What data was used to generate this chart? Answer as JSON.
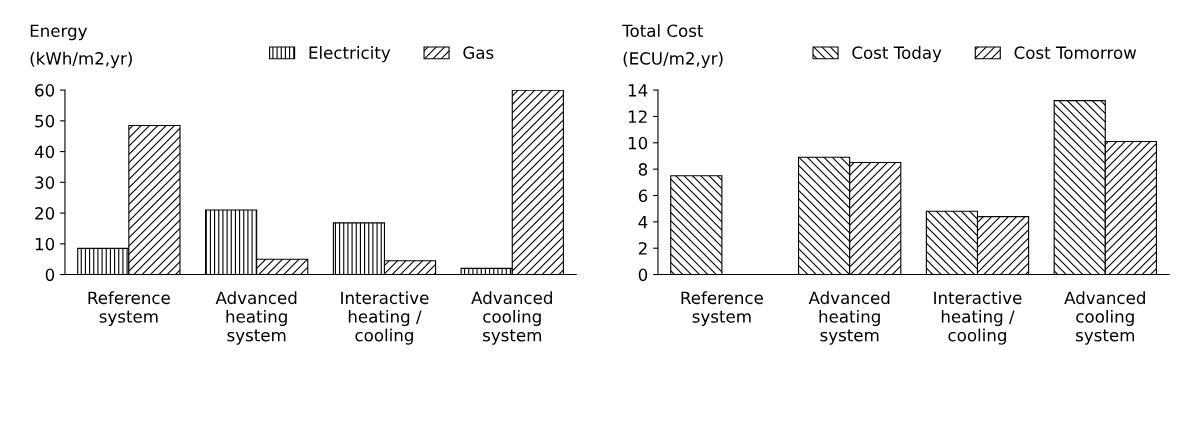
{
  "chart_data": [
    {
      "type": "bar",
      "title": "Energy",
      "ylabel": "(kWh/m2,yr)",
      "categories": [
        "Reference\nsystem",
        "Advanced\nheating\nsystem",
        "Interactive\nheating /\ncooling",
        "Advanced\ncooling\nsystem"
      ],
      "series": [
        {
          "name": "Electricity",
          "color": "#000000",
          "values": [
            8.5,
            21,
            16.8,
            2
          ]
        },
        {
          "name": "Gas",
          "color": "#000000",
          "values": [
            48.5,
            5,
            4.5,
            60
          ]
        }
      ],
      "ylim": [
        0,
        60
      ],
      "yticks": [
        0,
        10,
        20,
        30,
        40,
        50,
        60
      ],
      "legend": "top",
      "grid": false
    },
    {
      "type": "bar",
      "title": "Total Cost",
      "ylabel": "(ECU/m2,yr)",
      "categories": [
        "Reference\nsystem",
        "Advanced\nheating\nsystem",
        "Interactive\nheating /\ncooling",
        "Advanced\ncooling\nsystem"
      ],
      "series": [
        {
          "name": "Cost Today",
          "color": "#000000",
          "values": [
            7.5,
            8.9,
            4.8,
            13.2
          ]
        },
        {
          "name": "Cost Tomorrow",
          "color": "#000000",
          "values": [
            null,
            8.5,
            4.4,
            10.1
          ]
        }
      ],
      "ylim": [
        0,
        14
      ],
      "yticks": [
        0,
        2,
        4,
        6,
        8,
        10,
        12,
        14
      ],
      "legend": "top",
      "grid": false
    }
  ]
}
